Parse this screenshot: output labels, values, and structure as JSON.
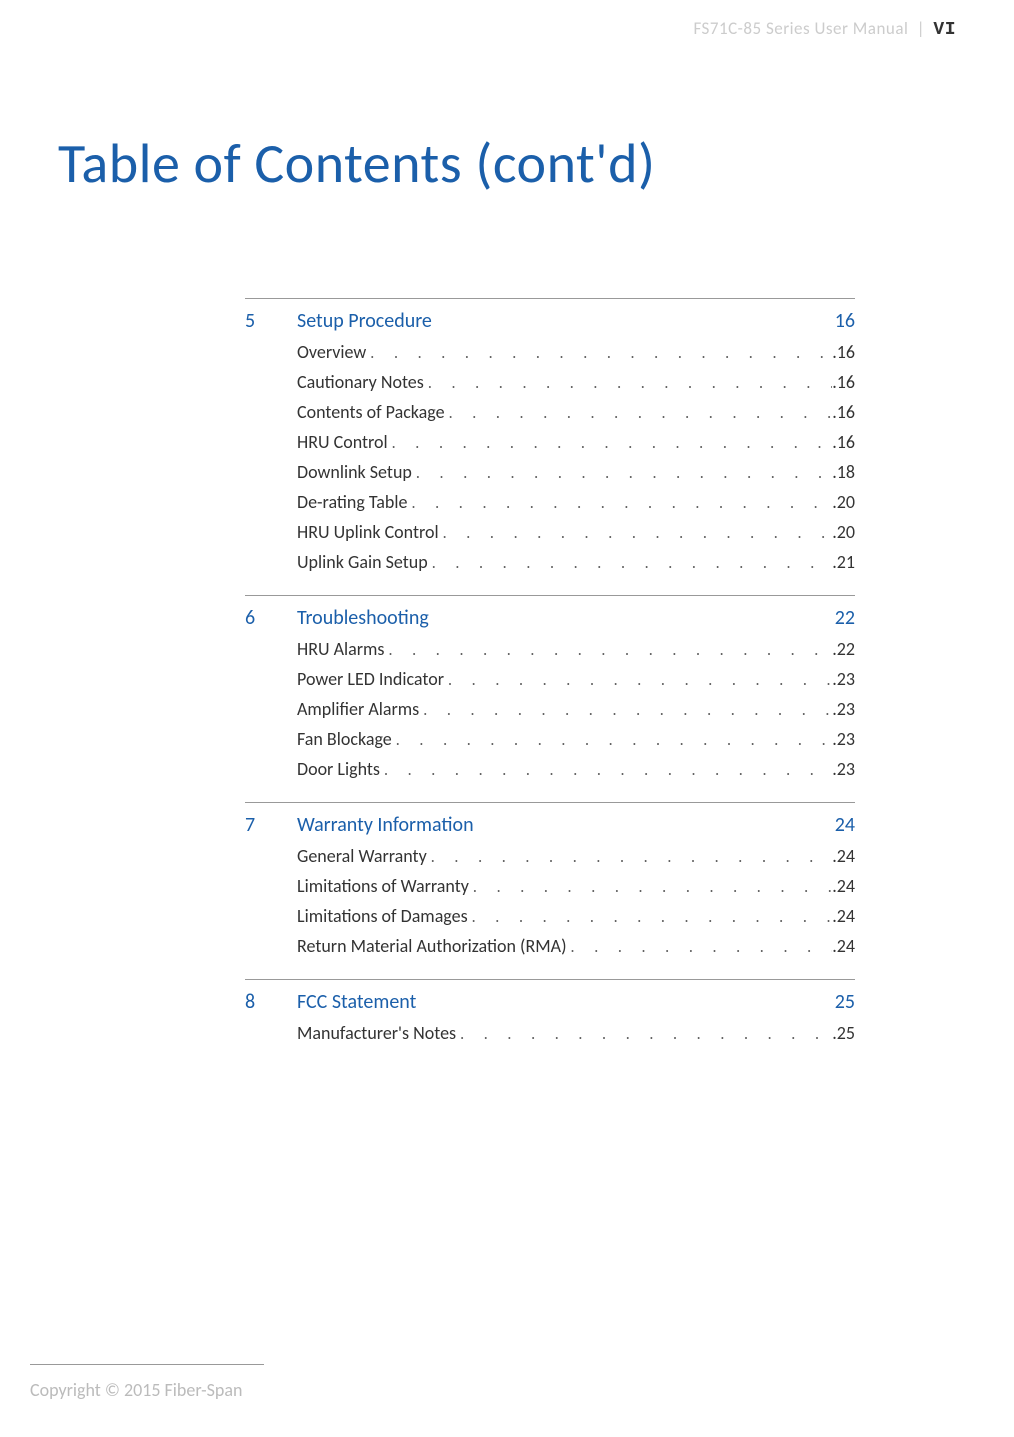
{
  "header": {
    "product": "FS71C-85 Series User Manual",
    "separator": "|",
    "page_roman": "VI"
  },
  "page_title": "Table of Contents (cont'd)",
  "colors": {
    "accent": "#1b5faa",
    "muted": "#cccccc",
    "text": "#333333",
    "rule": "#999999"
  },
  "sections": [
    {
      "num": "5",
      "title": "Setup Procedure",
      "page": "16",
      "entries": [
        {
          "label": "Overview",
          "page": "16"
        },
        {
          "label": "Cautionary Notes",
          "page": "16"
        },
        {
          "label": "Contents of Package",
          "page": "16"
        },
        {
          "label": "HRU Control",
          "page": "16"
        },
        {
          "label": "Downlink Setup",
          "page": "18"
        },
        {
          "label": "De-rating Table",
          "page": "20"
        },
        {
          "label": "HRU Uplink Control",
          "page": "20"
        },
        {
          "label": "Uplink Gain Setup",
          "page": "21"
        }
      ]
    },
    {
      "num": "6",
      "title": "Troubleshooting",
      "page": "22",
      "entries": [
        {
          "label": "HRU Alarms",
          "page": "22"
        },
        {
          "label": "Power LED Indicator",
          "page": "23"
        },
        {
          "label": "Amplifier Alarms",
          "page": "23"
        },
        {
          "label": "Fan Blockage",
          "page": "23"
        },
        {
          "label": "Door Lights",
          "page": "23"
        }
      ]
    },
    {
      "num": "7",
      "title": "Warranty Information",
      "page": "24",
      "entries": [
        {
          "label": "General Warranty",
          "page": "24"
        },
        {
          "label": "Limitations of Warranty",
          "page": "24"
        },
        {
          "label": "Limitations of Damages",
          "page": "24"
        },
        {
          "label": "Return Material Authorization (RMA)",
          "page": "24"
        }
      ]
    },
    {
      "num": "8",
      "title": "FCC Statement",
      "page": "25",
      "entries": [
        {
          "label": "Manufacturer's Notes",
          "page": "25"
        }
      ]
    }
  ],
  "footer": {
    "copyright": "Copyright © 2015 Fiber-Span"
  }
}
